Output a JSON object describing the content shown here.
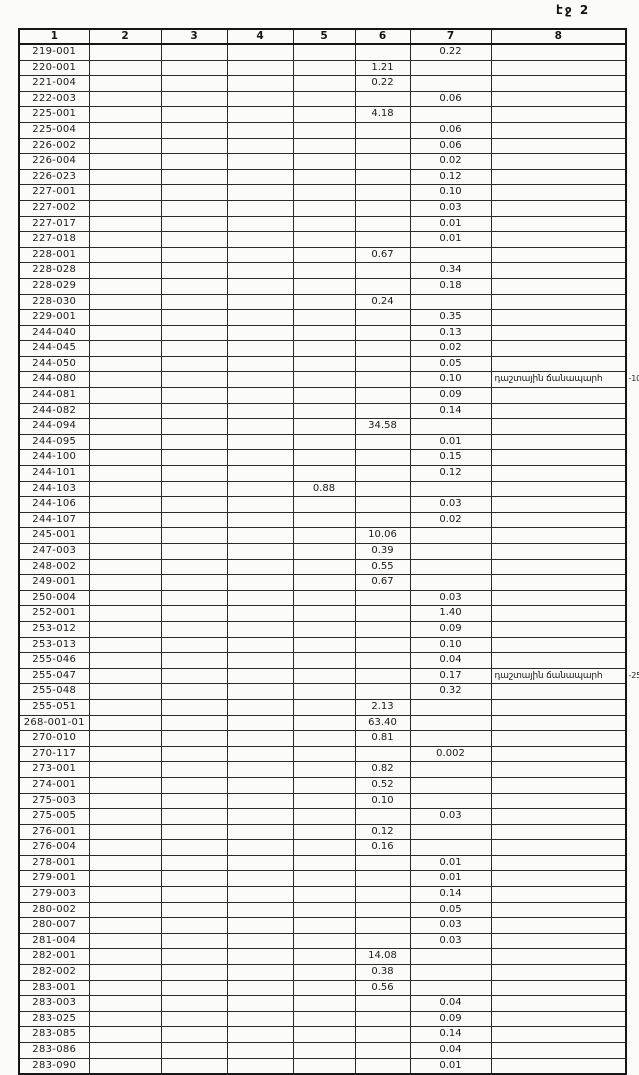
{
  "page": {
    "header": "էջ 2"
  },
  "table": {
    "columns": [
      "1",
      "2",
      "3",
      "4",
      "5",
      "6",
      "7",
      "8"
    ],
    "road_note": "դաշտային ճանապարհ",
    "rows": [
      {
        "code": "219-001",
        "col": 7,
        "value": "0.22"
      },
      {
        "code": "220-001",
        "col": 6,
        "value": "1.21"
      },
      {
        "code": "221-004",
        "col": 6,
        "value": "0.22"
      },
      {
        "code": "222-003",
        "col": 7,
        "value": "0.06"
      },
      {
        "code": "225-001",
        "col": 6,
        "value": "4.18"
      },
      {
        "code": "225-004",
        "col": 7,
        "value": "0.06"
      },
      {
        "code": "226-002",
        "col": 7,
        "value": "0.06"
      },
      {
        "code": "226-004",
        "col": 7,
        "value": "0.02"
      },
      {
        "code": "226-023",
        "col": 7,
        "value": "0.12"
      },
      {
        "code": "227-001",
        "col": 7,
        "value": "0.10"
      },
      {
        "code": "227-002",
        "col": 7,
        "value": "0.03"
      },
      {
        "code": "227-017",
        "col": 7,
        "value": "0.01"
      },
      {
        "code": "227-018",
        "col": 7,
        "value": "0.01"
      },
      {
        "code": "228-001",
        "col": 6,
        "value": "0.67"
      },
      {
        "code": "228-028",
        "col": 7,
        "value": "0.34"
      },
      {
        "code": "228-029",
        "col": 7,
        "value": "0.18"
      },
      {
        "code": "228-030",
        "col": 6,
        "value": "0.24"
      },
      {
        "code": "229-001",
        "col": 7,
        "value": "0.35"
      },
      {
        "code": "244-040",
        "col": 7,
        "value": "0.13"
      },
      {
        "code": "244-045",
        "col": 7,
        "value": "0.02"
      },
      {
        "code": "244-050",
        "col": 7,
        "value": "0.05"
      },
      {
        "code": "244-080",
        "col": 7,
        "value": "0.10",
        "note": "դաշտային ճանապարհ",
        "margin": "-10"
      },
      {
        "code": "244-081",
        "col": 7,
        "value": "0.09"
      },
      {
        "code": "244-082",
        "col": 7,
        "value": "0.14"
      },
      {
        "code": "244-094",
        "col": 6,
        "value": "34.58"
      },
      {
        "code": "244-095",
        "col": 7,
        "value": "0.01"
      },
      {
        "code": "244-100",
        "col": 7,
        "value": "0.15"
      },
      {
        "code": "244-101",
        "col": 7,
        "value": "0.12"
      },
      {
        "code": "244-103",
        "col": 5,
        "value": "0.88"
      },
      {
        "code": "244-106",
        "col": 7,
        "value": "0.03"
      },
      {
        "code": "244-107",
        "col": 7,
        "value": "0.02"
      },
      {
        "code": "245-001",
        "col": 6,
        "value": "10.06"
      },
      {
        "code": "247-003",
        "col": 6,
        "value": "0.39"
      },
      {
        "code": "248-002",
        "col": 6,
        "value": "0.55"
      },
      {
        "code": "249-001",
        "col": 6,
        "value": "0.67"
      },
      {
        "code": "250-004",
        "col": 7,
        "value": "0.03"
      },
      {
        "code": "252-001",
        "col": 7,
        "value": "1.40"
      },
      {
        "code": "253-012",
        "col": 7,
        "value": "0.09"
      },
      {
        "code": "253-013",
        "col": 7,
        "value": "0.10"
      },
      {
        "code": "255-046",
        "col": 7,
        "value": "0.04"
      },
      {
        "code": "255-047",
        "col": 7,
        "value": "0.17",
        "note": "դաշտային ճանապարհ",
        "margin": "-25"
      },
      {
        "code": "255-048",
        "col": 7,
        "value": "0.32"
      },
      {
        "code": "255-051",
        "col": 6,
        "value": "2.13"
      },
      {
        "code": "268-001-01",
        "col": 6,
        "value": "63.40"
      },
      {
        "code": "270-010",
        "col": 6,
        "value": "0.81"
      },
      {
        "code": "270-117",
        "col": 7,
        "value": "0.002"
      },
      {
        "code": "273-001",
        "col": 6,
        "value": "0.82"
      },
      {
        "code": "274-001",
        "col": 6,
        "value": "0.52"
      },
      {
        "code": "275-003",
        "col": 6,
        "value": "0.10"
      },
      {
        "code": "275-005",
        "col": 7,
        "value": "0.03"
      },
      {
        "code": "276-001",
        "col": 6,
        "value": "0.12"
      },
      {
        "code": "276-004",
        "col": 6,
        "value": "0.16"
      },
      {
        "code": "278-001",
        "col": 7,
        "value": "0.01"
      },
      {
        "code": "279-001",
        "col": 7,
        "value": "0.01"
      },
      {
        "code": "279-003",
        "col": 7,
        "value": "0.14"
      },
      {
        "code": "280-002",
        "col": 7,
        "value": "0.05"
      },
      {
        "code": "280-007",
        "col": 7,
        "value": "0.03"
      },
      {
        "code": "281-004",
        "col": 7,
        "value": "0.03"
      },
      {
        "code": "282-001",
        "col": 6,
        "value": "14.08"
      },
      {
        "code": "282-002",
        "col": 6,
        "value": "0.38"
      },
      {
        "code": "283-001",
        "col": 6,
        "value": "0.56"
      },
      {
        "code": "283-003",
        "col": 7,
        "value": "0.04"
      },
      {
        "code": "283-025",
        "col": 7,
        "value": "0.09"
      },
      {
        "code": "283-085",
        "col": 7,
        "value": "0.14"
      },
      {
        "code": "283-086",
        "col": 7,
        "value": "0.04"
      },
      {
        "code": "283-090",
        "col": 7,
        "value": "0.01"
      }
    ]
  }
}
